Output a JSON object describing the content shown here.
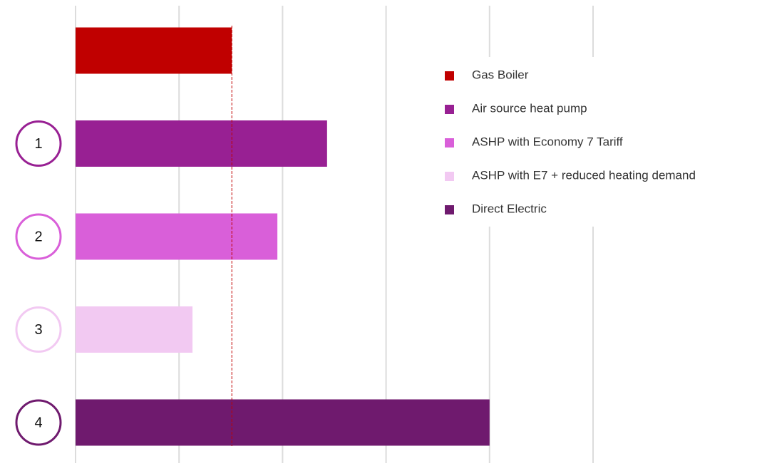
{
  "chart_data": {
    "type": "bar",
    "orientation": "horizontal",
    "categories": [
      null,
      "1",
      "2",
      "3",
      "4"
    ],
    "series": [
      {
        "name": "Gas Boiler",
        "color": "#c00000",
        "values": [
          1.51,
          null,
          null,
          null,
          null
        ]
      },
      {
        "name": "Air source heat pump",
        "color": "#982093",
        "values": [
          null,
          2.43,
          null,
          null,
          null
        ]
      },
      {
        "name": "ASHP with Economy 7 Tariff",
        "color": "#d95fd9",
        "values": [
          null,
          null,
          1.95,
          null,
          null
        ]
      },
      {
        "name": "ASHP with E7 + reduced heating demand",
        "color": "#f2c9f2",
        "values": [
          null,
          null,
          null,
          1.13,
          null
        ]
      },
      {
        "name": "Direct Electric",
        "color": "#6f1a6e",
        "values": [
          null,
          null,
          null,
          null,
          4.0
        ]
      }
    ],
    "xlim": [
      0,
      5
    ],
    "xticks": [
      0,
      1,
      2,
      3,
      4,
      5
    ],
    "grid": true,
    "legend": "upper right"
  }
}
